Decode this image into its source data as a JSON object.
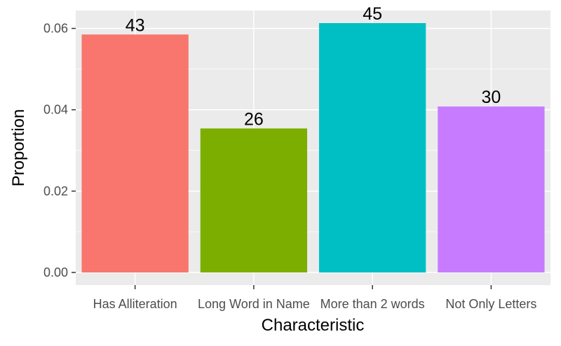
{
  "chart_data": {
    "type": "bar",
    "title": "",
    "xlabel": "Characteristic",
    "ylabel": "Proportion",
    "categories": [
      "Has Alliteration",
      "Long Word in Name",
      "More than 2 words",
      "Not Only Letters"
    ],
    "values": [
      0.0585,
      0.0354,
      0.0613,
      0.0408
    ],
    "bar_labels": [
      "43",
      "26",
      "45",
      "30"
    ],
    "colors": [
      "#F8766D",
      "#7CAE00",
      "#00BFC4",
      "#C77CFF"
    ],
    "yticks": [
      "0.00",
      "0.02",
      "0.04",
      "0.06"
    ],
    "ylim": [
      -0.0031,
      0.0644
    ],
    "grid": true,
    "legend": "none",
    "panel_background": "#EBEBEB",
    "grid_color": "#FFFFFF"
  }
}
